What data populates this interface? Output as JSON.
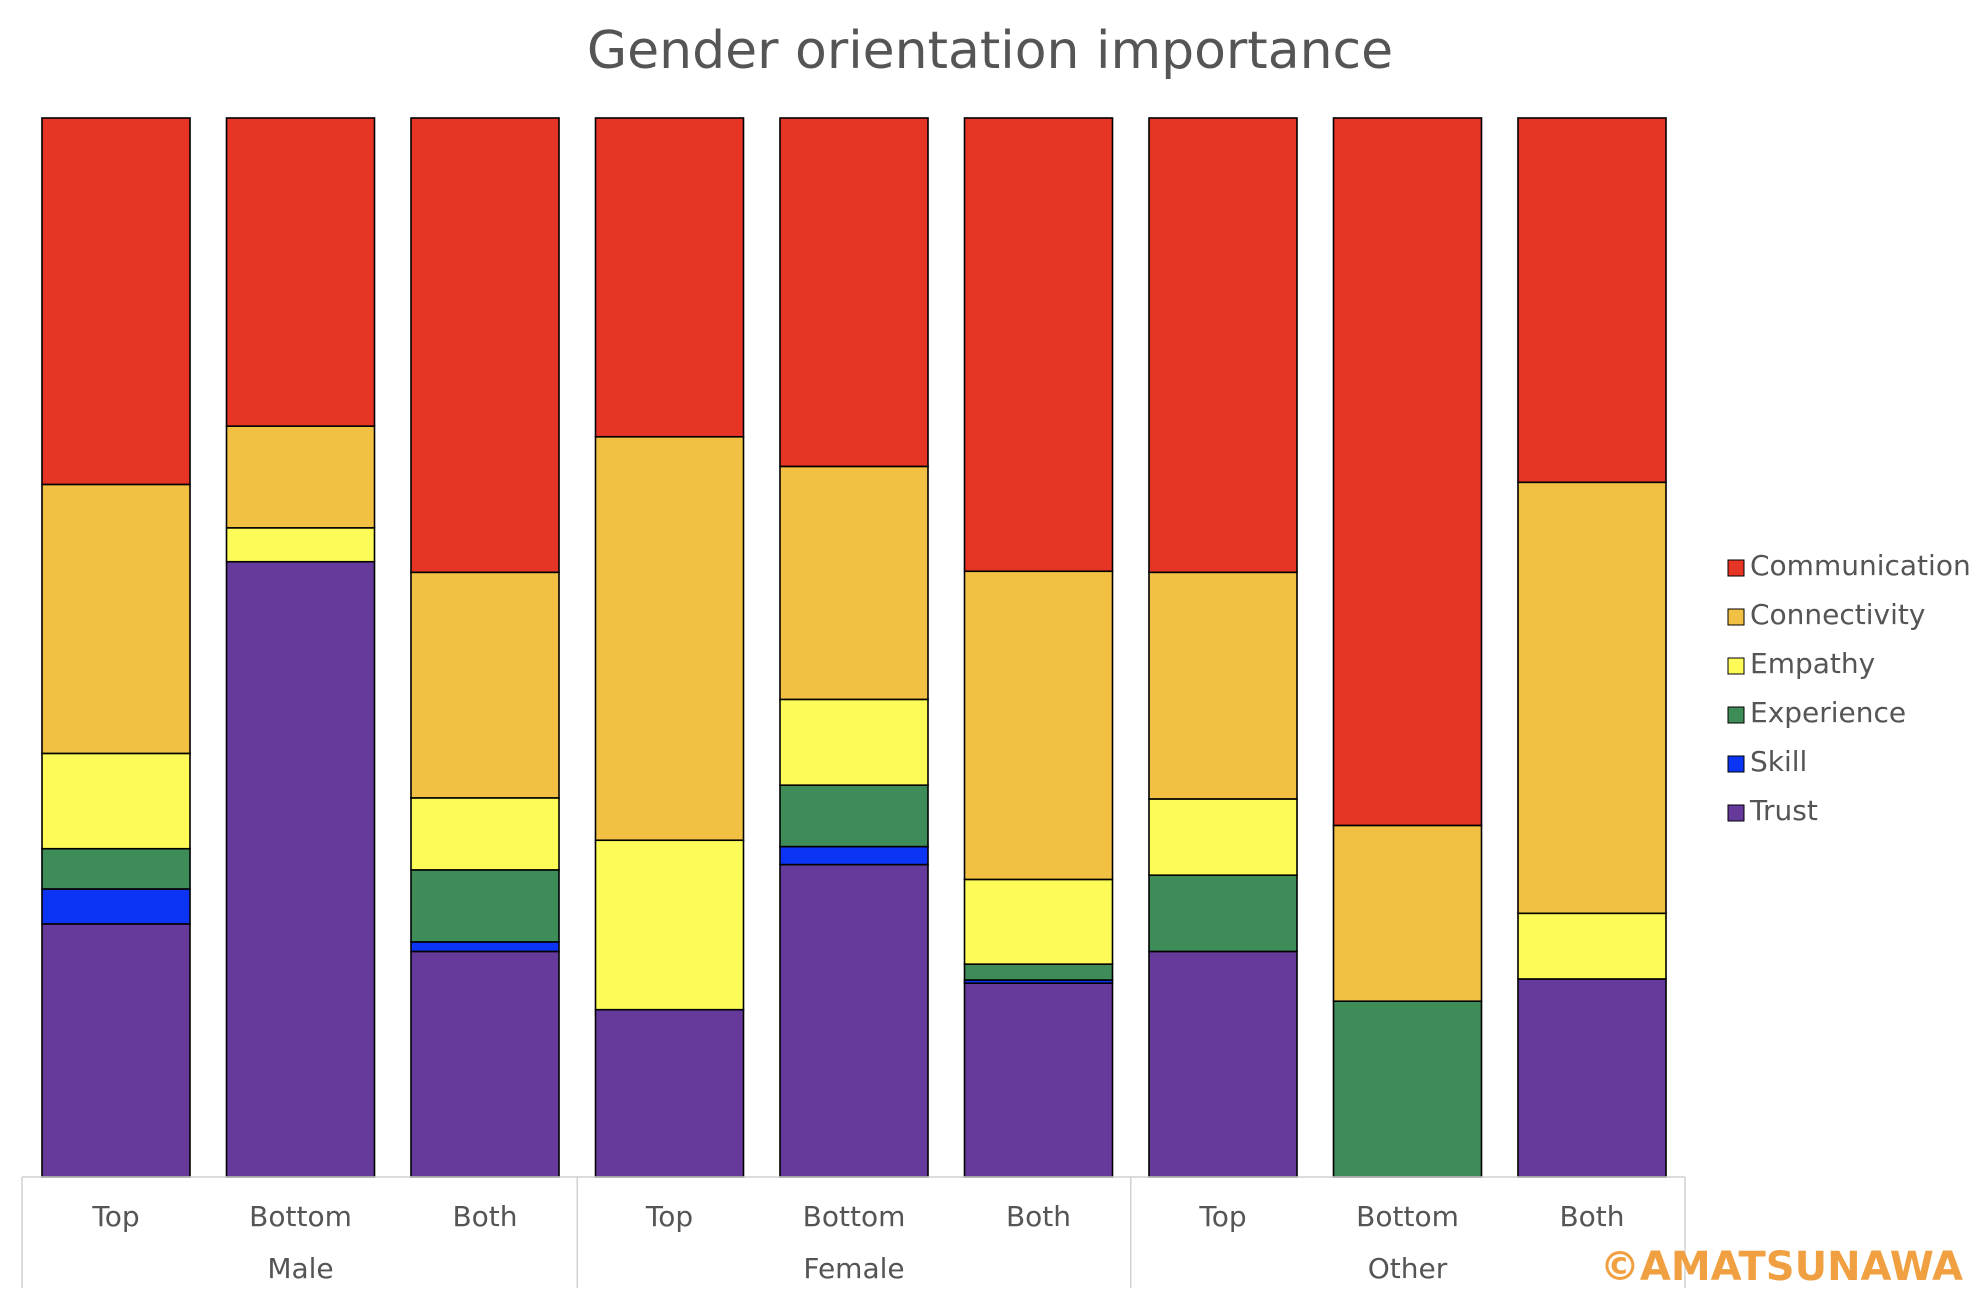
{
  "chart_data": {
    "type": "bar",
    "stacked": true,
    "normalized": true,
    "title": "Gender orientation importance",
    "categories": [
      "Top",
      "Bottom",
      "Both",
      "Top",
      "Bottom",
      "Both",
      "Top",
      "Bottom",
      "Both"
    ],
    "groups": [
      {
        "label": "Male",
        "span": 3
      },
      {
        "label": "Female",
        "span": 3
      },
      {
        "label": "Other",
        "span": 3
      }
    ],
    "series": [
      {
        "name": "Trust",
        "color": "#663a9b",
        "values": [
          23.9,
          58.1,
          21.3,
          15.8,
          29.5,
          18.3,
          21.3,
          0.0,
          18.7
        ]
      },
      {
        "name": "Skill",
        "color": "#0b34f5",
        "values": [
          3.3,
          0.0,
          0.9,
          0.0,
          1.7,
          0.3,
          0.0,
          0.0,
          0.0
        ]
      },
      {
        "name": "Experience",
        "color": "#3e8c57",
        "values": [
          3.8,
          0.0,
          6.8,
          0.0,
          5.8,
          1.5,
          7.2,
          16.6,
          0.0
        ]
      },
      {
        "name": "Empathy",
        "color": "#fcfb58",
        "values": [
          9.0,
          3.2,
          6.8,
          16.0,
          8.1,
          8.0,
          7.2,
          0.0,
          6.2
        ]
      },
      {
        "name": "Connectivity",
        "color": "#f2c144",
        "values": [
          25.4,
          9.6,
          21.3,
          38.1,
          22.0,
          29.1,
          21.4,
          16.6,
          40.7
        ]
      },
      {
        "name": "Communication",
        "color": "#e63425",
        "values": [
          34.6,
          29.1,
          42.9,
          30.1,
          32.9,
          42.8,
          42.9,
          66.8,
          34.4
        ]
      }
    ],
    "ylim": [
      0,
      100
    ],
    "legend_position": "right",
    "legend_order": [
      "Communication",
      "Connectivity",
      "Empathy",
      "Experience",
      "Skill",
      "Trust"
    ],
    "grid": false
  },
  "watermark": "©AMATSUNAWA",
  "watermark_color": "#f0a040"
}
